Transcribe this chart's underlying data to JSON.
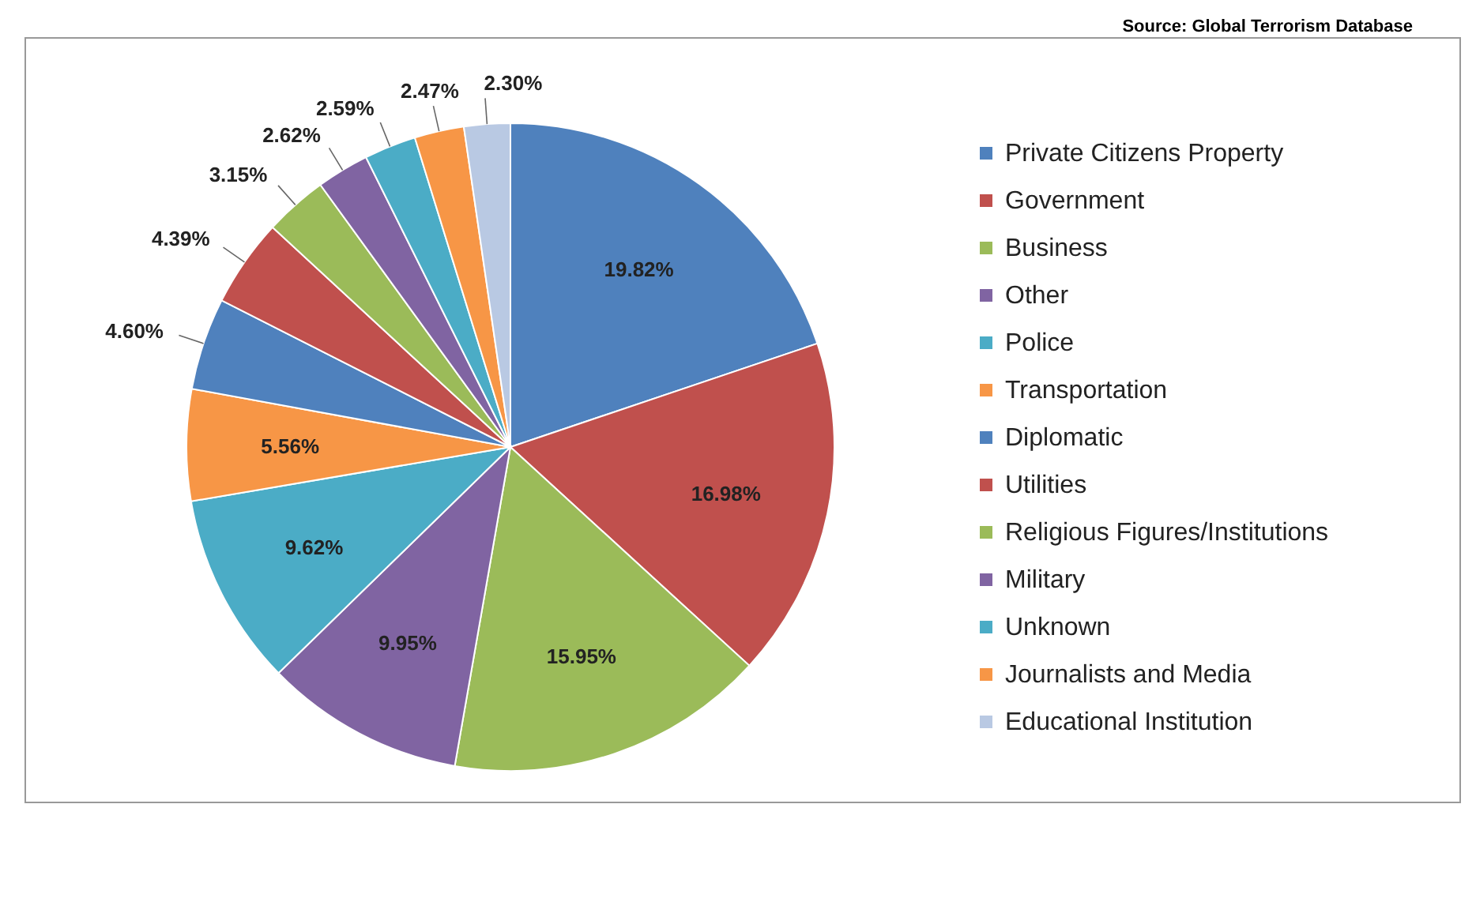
{
  "chart_data": {
    "type": "pie",
    "annotations": [
      "Source: Global Terrorism Database"
    ],
    "categories": [
      "Private Citizens Property",
      "Government",
      "Business",
      "Other",
      "Police",
      "Transportation",
      "Diplomatic",
      "Utilities",
      "Religious Figures/Institutions",
      "Military",
      "Unknown",
      "Journalists and Media",
      "Educational Institution"
    ],
    "values": [
      19.82,
      16.98,
      15.95,
      9.95,
      9.62,
      5.56,
      4.6,
      4.39,
      3.15,
      2.62,
      2.59,
      2.47,
      2.3
    ],
    "value_labels": [
      "19.82%",
      "16.98%",
      "15.95%",
      "9.95%",
      "9.62%",
      "5.56%",
      "4.60%",
      "4.39%",
      "3.15%",
      "2.62%",
      "2.59%",
      "2.47%",
      "2.30%"
    ],
    "colors": [
      "#4f81bd",
      "#c0504d",
      "#9bbb59",
      "#8064a2",
      "#4bacc6",
      "#f79646",
      "#4f81bd",
      "#c0504d",
      "#9bbb59",
      "#8064a2",
      "#4bacc6",
      "#f79646",
      "#b9c9e3"
    ],
    "legend": "right"
  }
}
